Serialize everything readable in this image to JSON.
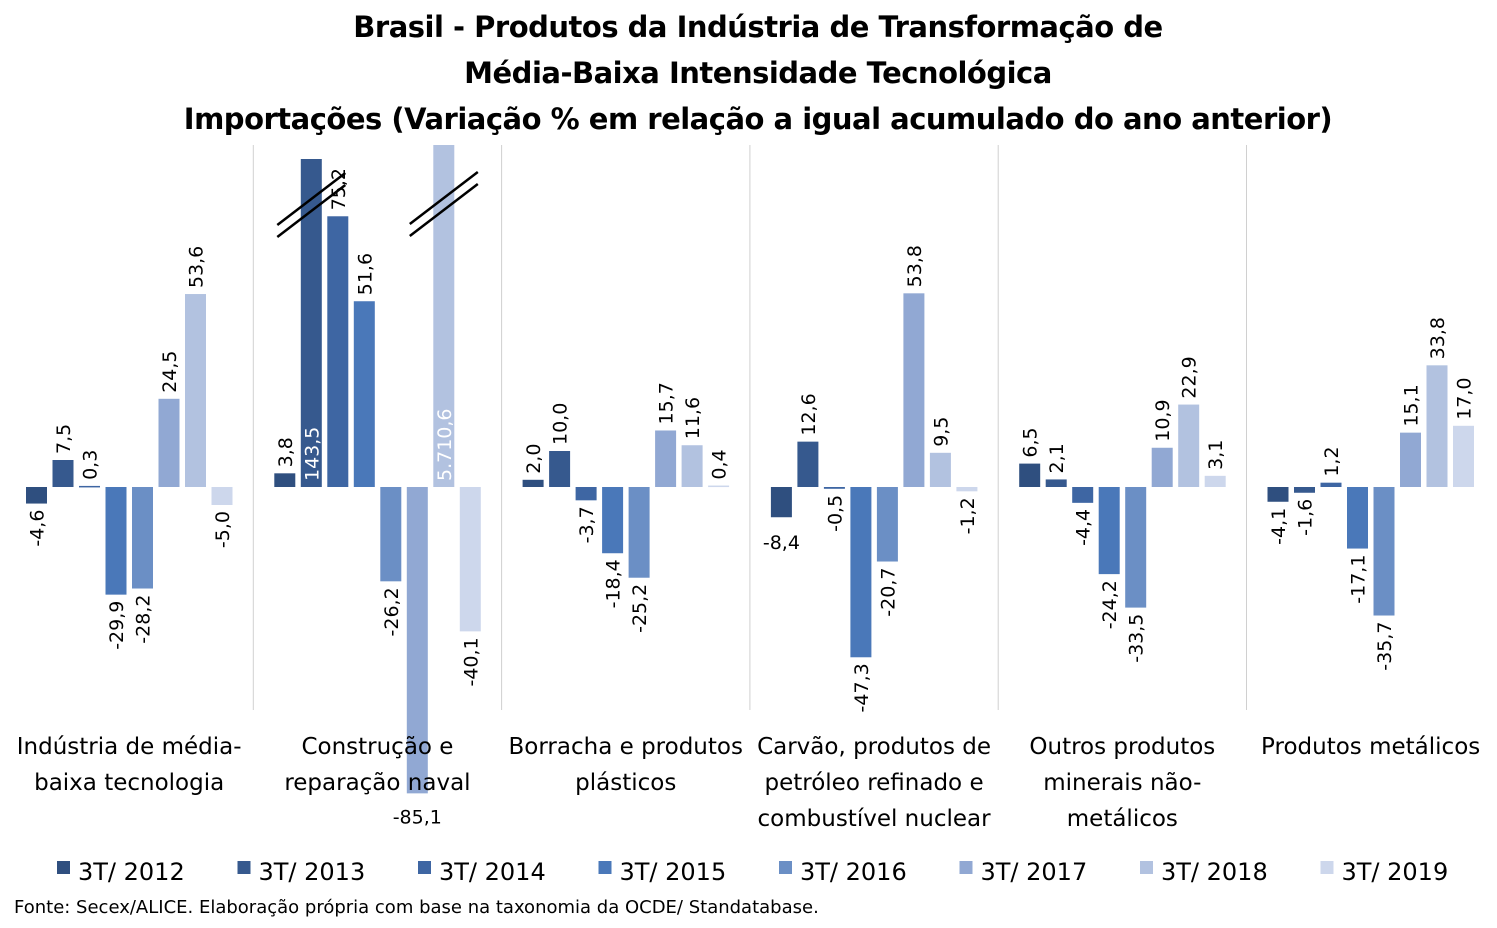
{
  "chart_data": {
    "type": "bar",
    "title": [
      "Brasil - Produtos da Indústria de Transformação de",
      "Média-Baixa Intensidade Tecnológica",
      "Importações (Variação % em relação a igual acumulado do ano anterior)"
    ],
    "categories": [
      [
        "Indústria de média-",
        "baixa tecnologia"
      ],
      [
        "Construção e",
        "reparação naval"
      ],
      [
        "Borracha e produtos",
        "plásticos"
      ],
      [
        "Carvão, produtos de",
        "petróleo refinado e",
        "combustível nuclear"
      ],
      [
        "Outros produtos",
        "minerais não-",
        "metálicos"
      ],
      [
        "Produtos metálicos"
      ]
    ],
    "series": [
      {
        "name": "3T/ 2012",
        "color": "#2f4f7f",
        "values": [
          -4.6,
          3.8,
          2.0,
          -8.4,
          6.5,
          -4.1
        ],
        "labels": [
          "-4,6",
          "3,8",
          "2,0",
          "-8,4",
          "6,5",
          "-4,1"
        ]
      },
      {
        "name": "3T/ 2013",
        "color": "#36598e",
        "values": [
          7.5,
          143.5,
          10.0,
          12.6,
          2.1,
          -1.6
        ],
        "labels": [
          "7,5",
          "143,5",
          "10,0",
          "12,6",
          "2,1",
          "-1,6"
        ]
      },
      {
        "name": "3T/ 2014",
        "color": "#3e66a3",
        "values": [
          0.3,
          75.2,
          -3.7,
          -0.5,
          -4.4,
          1.2
        ],
        "labels": [
          "0,3",
          "75,2",
          "-3,7",
          "-0,5",
          "-4,4",
          "1,2"
        ]
      },
      {
        "name": "3T/ 2015",
        "color": "#4a78b9",
        "values": [
          -29.9,
          51.6,
          -18.4,
          -47.3,
          -24.2,
          -17.1
        ],
        "labels": [
          "-29,9",
          "51,6",
          "-18,4",
          "-47,3",
          "-24,2",
          "-17,1"
        ]
      },
      {
        "name": "3T/ 2016",
        "color": "#6b8fc5",
        "values": [
          -28.2,
          -26.2,
          -25.2,
          -20.7,
          -33.5,
          -35.7
        ],
        "labels": [
          "-28,2",
          "-26,2",
          "-25,2",
          "-20,7",
          "-33,5",
          "-35,7"
        ]
      },
      {
        "name": "3T/ 2017",
        "color": "#91a8d3",
        "values": [
          24.5,
          -85.1,
          15.7,
          53.8,
          10.9,
          15.1
        ],
        "labels": [
          "24,5",
          "-85,1",
          "15,7",
          "53,8",
          "10,9",
          "15,1"
        ]
      },
      {
        "name": "3T/ 2018",
        "color": "#b2c2e0",
        "values": [
          53.6,
          5710.6,
          11.6,
          9.5,
          22.9,
          33.8
        ],
        "labels": [
          "53,6",
          "5.710,6",
          "11,6",
          "9,5",
          "22,9",
          "33,8"
        ]
      },
      {
        "name": "3T/ 2019",
        "color": "#cdd7ec",
        "values": [
          -5.0,
          -40.1,
          0.4,
          -1.2,
          3.1,
          17.0
        ],
        "labels": [
          "-5,0",
          "-40,1",
          "0,4",
          "-1,2",
          "3,1",
          "17,0"
        ]
      }
    ],
    "broken_bars": [
      {
        "category": 1,
        "series": 1
      },
      {
        "category": 1,
        "series": 6
      }
    ],
    "legend_position": "bottom",
    "grid": false
  },
  "source": "Fonte: Secex/ALICE. Elaboração própria com base na taxonomia da OCDE/ Standatabase."
}
